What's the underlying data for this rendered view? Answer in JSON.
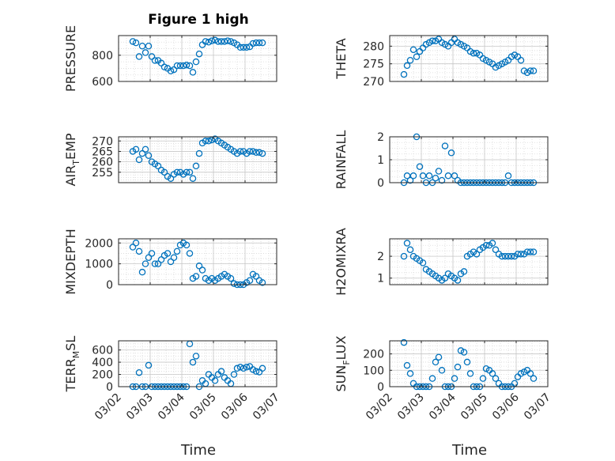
{
  "figure_title": "Figure 1 high",
  "colors": {
    "marker": "#0072BD",
    "axis": "#262626",
    "grid": "#d9d9d9",
    "background": "#ffffff"
  },
  "x_axis": {
    "label": "Time",
    "range": [
      "03/02",
      "03/07"
    ],
    "tick_labels": [
      "03/02",
      "03/03",
      "03/04",
      "03/05",
      "03/06",
      "03/07"
    ]
  },
  "chart_data": [
    {
      "type": "scatter",
      "title": "Figure 1 high",
      "ylabel": "PRESSURE",
      "ylim": [
        600,
        950
      ],
      "yticks": [
        600,
        800
      ],
      "ytick_labels": [
        "600",
        "800"
      ],
      "grid": true,
      "x": [
        2.45,
        2.55,
        2.65,
        2.75,
        2.85,
        2.95,
        3.05,
        3.15,
        3.25,
        3.35,
        3.45,
        3.55,
        3.65,
        3.75,
        3.85,
        3.95,
        4.05,
        4.15,
        4.25,
        4.35,
        4.45,
        4.55,
        4.65,
        4.75,
        4.85,
        4.95,
        5.05,
        5.15,
        5.25,
        5.35,
        5.45,
        5.55,
        5.65,
        5.75,
        5.85,
        5.95,
        6.05,
        6.15,
        6.25,
        6.35,
        6.45,
        6.55
      ],
      "y": [
        905,
        895,
        790,
        870,
        820,
        870,
        790,
        760,
        760,
        740,
        710,
        700,
        680,
        690,
        720,
        720,
        720,
        725,
        720,
        670,
        750,
        810,
        880,
        905,
        900,
        910,
        915,
        905,
        905,
        905,
        910,
        905,
        895,
        880,
        860,
        860,
        860,
        865,
        890,
        895,
        895,
        895
      ]
    },
    {
      "type": "scatter",
      "ylabel": "THETA",
      "ylim": [
        270,
        283
      ],
      "yticks": [
        270,
        275,
        280
      ],
      "ytick_labels": [
        "270",
        "275",
        "280"
      ],
      "grid": true,
      "x": [
        2.45,
        2.55,
        2.65,
        2.75,
        2.85,
        2.95,
        3.05,
        3.15,
        3.25,
        3.35,
        3.45,
        3.55,
        3.65,
        3.75,
        3.85,
        3.95,
        4.05,
        4.15,
        4.25,
        4.35,
        4.45,
        4.55,
        4.65,
        4.75,
        4.85,
        4.95,
        5.05,
        5.15,
        5.25,
        5.35,
        5.45,
        5.55,
        5.65,
        5.75,
        5.85,
        5.95,
        6.05,
        6.15,
        6.25,
        6.35,
        6.45,
        6.55
      ],
      "y": [
        272,
        274.5,
        276,
        279,
        277,
        278.5,
        279.5,
        280.5,
        281,
        281.5,
        281.5,
        282,
        281,
        280.5,
        280,
        281,
        282,
        281,
        280.5,
        280,
        279.5,
        278.5,
        278,
        278,
        277.5,
        276.5,
        276,
        275.5,
        275,
        274,
        274.5,
        275,
        275.5,
        276,
        277,
        277.5,
        277,
        276,
        273,
        272.5,
        273,
        273
      ]
    },
    {
      "type": "scatter",
      "ylabel": "AIR_TEMP",
      "ylim": [
        250,
        272
      ],
      "yticks": [
        255,
        260,
        265,
        270
      ],
      "ytick_labels": [
        "255",
        "260",
        "265",
        "270"
      ],
      "grid": true,
      "x": [
        2.45,
        2.55,
        2.65,
        2.75,
        2.85,
        2.95,
        3.05,
        3.15,
        3.25,
        3.35,
        3.45,
        3.55,
        3.65,
        3.75,
        3.85,
        3.95,
        4.05,
        4.15,
        4.25,
        4.35,
        4.45,
        4.55,
        4.65,
        4.75,
        4.85,
        4.95,
        5.05,
        5.15,
        5.25,
        5.35,
        5.45,
        5.55,
        5.65,
        5.75,
        5.85,
        5.95,
        6.05,
        6.15,
        6.25,
        6.35,
        6.45,
        6.55
      ],
      "y": [
        265,
        266,
        261,
        264,
        266,
        263,
        260,
        259,
        258,
        256,
        255,
        253,
        252,
        254,
        255,
        255,
        254,
        255,
        255,
        252,
        258,
        264,
        269,
        270,
        270,
        270.5,
        271,
        270,
        269,
        268,
        267,
        266,
        265,
        264,
        265,
        265,
        264,
        265,
        265,
        264.5,
        264.5,
        264
      ]
    },
    {
      "type": "scatter",
      "ylabel": "RAINFALL",
      "ylim": [
        0,
        2
      ],
      "yticks": [
        0,
        1,
        2
      ],
      "ytick_labels": [
        "0",
        "1",
        "2"
      ],
      "grid": true,
      "x": [
        2.45,
        2.55,
        2.65,
        2.75,
        2.85,
        2.95,
        3.05,
        3.15,
        3.25,
        3.35,
        3.45,
        3.55,
        3.65,
        3.75,
        3.85,
        3.95,
        4.05,
        4.15,
        4.25,
        4.35,
        4.45,
        4.55,
        4.65,
        4.75,
        4.85,
        4.95,
        5.05,
        5.15,
        5.25,
        5.35,
        5.45,
        5.55,
        5.65,
        5.75,
        5.85,
        5.95,
        6.05,
        6.15,
        6.25,
        6.35,
        6.45,
        6.55
      ],
      "y": [
        0,
        0.3,
        0.1,
        0.3,
        2.0,
        0.7,
        0.3,
        0,
        0.3,
        0,
        0.2,
        0.5,
        0.1,
        1.6,
        0.3,
        1.3,
        0.3,
        0.1,
        0,
        0,
        0,
        0,
        0,
        0,
        0,
        0,
        0,
        0,
        0,
        0,
        0,
        0,
        0,
        0.3,
        0,
        0,
        0,
        0,
        0,
        0,
        0,
        0
      ]
    },
    {
      "type": "scatter",
      "ylabel": "MIXDEPTH",
      "ylim": [
        0,
        2200
      ],
      "yticks": [
        0,
        1000,
        2000
      ],
      "ytick_labels": [
        "0",
        "1000",
        "2000"
      ],
      "grid": true,
      "x": [
        2.45,
        2.55,
        2.65,
        2.75,
        2.85,
        2.95,
        3.05,
        3.15,
        3.25,
        3.35,
        3.45,
        3.55,
        3.65,
        3.75,
        3.85,
        3.95,
        4.05,
        4.15,
        4.25,
        4.35,
        4.45,
        4.55,
        4.65,
        4.75,
        4.85,
        4.95,
        5.05,
        5.15,
        5.25,
        5.35,
        5.45,
        5.55,
        5.65,
        5.75,
        5.85,
        5.95,
        6.05,
        6.15,
        6.25,
        6.35,
        6.45,
        6.55
      ],
      "y": [
        1800,
        2000,
        1600,
        600,
        1000,
        1300,
        1500,
        1000,
        1000,
        1200,
        1400,
        1500,
        1100,
        1300,
        1600,
        1900,
        2000,
        1900,
        1500,
        300,
        400,
        900,
        700,
        300,
        200,
        300,
        200,
        300,
        400,
        500,
        400,
        300,
        50,
        0,
        0,
        0,
        100,
        200,
        500,
        400,
        200,
        100
      ]
    },
    {
      "type": "scatter",
      "ylabel": "H2OMIXRA",
      "ylim": [
        0.7,
        2.8
      ],
      "yticks": [
        1,
        2
      ],
      "ytick_labels": [
        "1",
        "2"
      ],
      "grid": true,
      "x": [
        2.45,
        2.55,
        2.65,
        2.75,
        2.85,
        2.95,
        3.05,
        3.15,
        3.25,
        3.35,
        3.45,
        3.55,
        3.65,
        3.75,
        3.85,
        3.95,
        4.05,
        4.15,
        4.25,
        4.35,
        4.45,
        4.55,
        4.65,
        4.75,
        4.85,
        4.95,
        5.05,
        5.15,
        5.25,
        5.35,
        5.45,
        5.55,
        5.65,
        5.75,
        5.85,
        5.95,
        6.05,
        6.15,
        6.25,
        6.35,
        6.45,
        6.55
      ],
      "y": [
        2.0,
        2.6,
        2.3,
        2.0,
        1.9,
        1.8,
        1.7,
        1.4,
        1.3,
        1.2,
        1.1,
        1.0,
        0.9,
        1.0,
        1.2,
        1.1,
        1.0,
        0.9,
        1.2,
        1.3,
        2.0,
        2.1,
        2.2,
        2.1,
        2.3,
        2.4,
        2.5,
        2.5,
        2.6,
        2.3,
        2.1,
        2.0,
        2.0,
        2.0,
        2.0,
        2.0,
        2.1,
        2.1,
        2.1,
        2.2,
        2.2,
        2.2
      ]
    },
    {
      "type": "scatter",
      "ylabel": "TERR_MSL",
      "ylim": [
        0,
        750
      ],
      "yticks": [
        0,
        200,
        400,
        600
      ],
      "ytick_labels": [
        "0",
        "200",
        "400",
        "600"
      ],
      "grid": true,
      "x": [
        2.45,
        2.55,
        2.65,
        2.75,
        2.85,
        2.95,
        3.05,
        3.15,
        3.25,
        3.35,
        3.45,
        3.55,
        3.65,
        3.75,
        3.85,
        3.95,
        4.05,
        4.15,
        4.25,
        4.35,
        4.45,
        4.55,
        4.65,
        4.75,
        4.85,
        4.95,
        5.05,
        5.15,
        5.25,
        5.35,
        5.45,
        5.55,
        5.65,
        5.75,
        5.85,
        5.95,
        6.05,
        6.15,
        6.25,
        6.35,
        6.45,
        6.55
      ],
      "y": [
        0,
        0,
        230,
        0,
        0,
        350,
        0,
        0,
        0,
        0,
        0,
        0,
        0,
        0,
        0,
        0,
        0,
        0,
        700,
        400,
        500,
        0,
        100,
        50,
        200,
        150,
        100,
        200,
        250,
        150,
        100,
        50,
        200,
        300,
        320,
        300,
        320,
        330,
        280,
        250,
        240,
        300
      ]
    },
    {
      "type": "scatter",
      "ylabel": "SUN_FLUX",
      "ylim": [
        0,
        280
      ],
      "yticks": [
        0,
        100,
        200
      ],
      "ytick_labels": [
        "0",
        "100",
        "200"
      ],
      "grid": true,
      "x": [
        2.45,
        2.55,
        2.65,
        2.75,
        2.85,
        2.95,
        3.05,
        3.15,
        3.25,
        3.35,
        3.45,
        3.55,
        3.65,
        3.75,
        3.85,
        3.95,
        4.05,
        4.15,
        4.25,
        4.35,
        4.45,
        4.55,
        4.65,
        4.75,
        4.85,
        4.95,
        5.05,
        5.15,
        5.25,
        5.35,
        5.45,
        5.55,
        5.65,
        5.75,
        5.85,
        5.95,
        6.05,
        6.15,
        6.25,
        6.35,
        6.45,
        6.55
      ],
      "y": [
        270,
        130,
        80,
        20,
        0,
        0,
        0,
        0,
        0,
        50,
        150,
        180,
        100,
        0,
        0,
        0,
        50,
        120,
        220,
        210,
        150,
        80,
        0,
        0,
        0,
        50,
        110,
        100,
        80,
        50,
        20,
        0,
        0,
        0,
        0,
        20,
        60,
        80,
        90,
        100,
        80,
        50
      ]
    }
  ]
}
